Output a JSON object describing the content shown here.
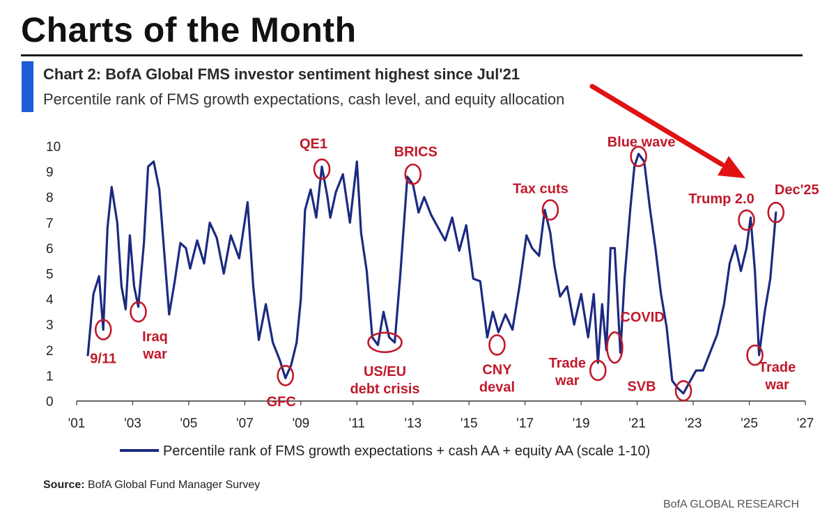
{
  "page": {
    "title": "Charts of the Month"
  },
  "colors": {
    "accent_bar": "#1f5bd6",
    "series_line": "#1b2a80",
    "annotation": "#c0182a",
    "arrow": "#e01212",
    "axis": "#333333"
  },
  "chart_data": {
    "type": "line",
    "title": "Chart 2: BofA Global FMS investor sentiment highest since Jul'21",
    "subtitle": "Percentile rank of FMS growth expectations, cash level, and equity allocation",
    "xlim": [
      2001,
      2027
    ],
    "ylim": [
      0,
      10
    ],
    "x_ticks": [
      {
        "value": 2001,
        "label": "'01"
      },
      {
        "value": 2003,
        "label": "'03"
      },
      {
        "value": 2005,
        "label": "'05"
      },
      {
        "value": 2007,
        "label": "'07"
      },
      {
        "value": 2009,
        "label": "'09"
      },
      {
        "value": 2011,
        "label": "'11"
      },
      {
        "value": 2013,
        "label": "'13"
      },
      {
        "value": 2015,
        "label": "'15"
      },
      {
        "value": 2017,
        "label": "'17"
      },
      {
        "value": 2019,
        "label": "'19"
      },
      {
        "value": 2021,
        "label": "'21"
      },
      {
        "value": 2023,
        "label": "'23"
      },
      {
        "value": 2025,
        "label": "'25"
      },
      {
        "value": 2027,
        "label": "'27"
      }
    ],
    "y_ticks": [
      0,
      1,
      2,
      3,
      4,
      5,
      6,
      7,
      8,
      9,
      10
    ],
    "series": [
      {
        "name": "Percentile rank of FMS growth expectations + cash AA + equity AA (scale 1-10)",
        "x": [
          2001.4,
          2001.6,
          2001.8,
          2001.95,
          2002.1,
          2002.25,
          2002.45,
          2002.6,
          2002.75,
          2002.9,
          2003.05,
          2003.2,
          2003.4,
          2003.55,
          2003.75,
          2003.95,
          2004.15,
          2004.3,
          2004.5,
          2004.7,
          2004.9,
          2005.05,
          2005.3,
          2005.55,
          2005.75,
          2006.0,
          2006.25,
          2006.5,
          2006.8,
          2007.1,
          2007.3,
          2007.5,
          2007.75,
          2008.0,
          2008.25,
          2008.45,
          2008.65,
          2008.85,
          2009.0,
          2009.15,
          2009.35,
          2009.55,
          2009.75,
          2009.95,
          2010.05,
          2010.25,
          2010.5,
          2010.75,
          2011.0,
          2011.15,
          2011.35,
          2011.55,
          2011.75,
          2011.95,
          2012.15,
          2012.35,
          2012.55,
          2012.8,
          2013.0,
          2013.2,
          2013.4,
          2013.65,
          2013.9,
          2014.15,
          2014.4,
          2014.65,
          2014.9,
          2015.15,
          2015.4,
          2015.65,
          2015.85,
          2016.05,
          2016.3,
          2016.55,
          2016.8,
          2017.05,
          2017.25,
          2017.5,
          2017.7,
          2017.9,
          2018.05,
          2018.25,
          2018.5,
          2018.75,
          2019.0,
          2019.25,
          2019.45,
          2019.6,
          2019.75,
          2019.9,
          2020.05,
          2020.2,
          2020.4,
          2020.55,
          2020.75,
          2020.9,
          2021.05,
          2021.25,
          2021.45,
          2021.65,
          2021.85,
          2022.05,
          2022.25,
          2022.45,
          2022.65,
          2022.85,
          2023.1,
          2023.35,
          2023.6,
          2023.85,
          2024.1,
          2024.3,
          2024.5,
          2024.7,
          2024.9,
          2025.05,
          2025.2,
          2025.35,
          2025.55,
          2025.75,
          2025.95
        ],
        "y": [
          1.8,
          4.2,
          4.9,
          2.8,
          6.8,
          8.4,
          7.0,
          4.5,
          3.6,
          6.5,
          4.5,
          3.7,
          6.2,
          9.2,
          9.4,
          8.3,
          5.5,
          3.4,
          4.7,
          6.2,
          6.0,
          5.2,
          6.3,
          5.4,
          7.0,
          6.4,
          5.0,
          6.5,
          5.6,
          7.8,
          4.5,
          2.4,
          3.8,
          2.3,
          1.6,
          0.9,
          1.4,
          2.3,
          4.0,
          7.5,
          8.3,
          7.2,
          9.2,
          8.0,
          7.2,
          8.2,
          8.9,
          7.0,
          9.4,
          6.6,
          5.1,
          2.5,
          2.2,
          3.5,
          2.5,
          2.3,
          5.0,
          8.8,
          8.5,
          7.4,
          8.0,
          7.3,
          6.8,
          6.3,
          7.2,
          5.9,
          6.9,
          4.8,
          4.7,
          2.5,
          3.5,
          2.7,
          3.4,
          2.8,
          4.5,
          6.5,
          6.0,
          5.7,
          7.5,
          6.6,
          5.3,
          4.1,
          4.5,
          3.0,
          4.2,
          2.5,
          4.2,
          1.5,
          3.8,
          2.0,
          6.0,
          6.0,
          1.9,
          4.8,
          7.5,
          9.2,
          9.7,
          9.4,
          7.6,
          6.0,
          4.2,
          2.9,
          0.8,
          0.5,
          0.3,
          0.7,
          1.2,
          1.2,
          1.9,
          2.6,
          3.8,
          5.4,
          6.1,
          5.1,
          6.0,
          7.2,
          5.1,
          1.8,
          3.5,
          4.8,
          7.4
        ]
      }
    ],
    "annotations": [
      {
        "label": "9/11",
        "x": 2001.95,
        "y": 2.8,
        "lines": [
          "9/11"
        ]
      },
      {
        "label": "Iraq war",
        "x": 2003.2,
        "y": 3.5,
        "lines": [
          "Iraq",
          "war"
        ]
      },
      {
        "label": "GFC",
        "x": 2008.45,
        "y": 1.0,
        "lines": [
          "GFC"
        ]
      },
      {
        "label": "QE1",
        "x": 2009.75,
        "y": 9.1,
        "lines": [
          "QE1"
        ]
      },
      {
        "label": "US/EU debt crisis",
        "x": 2012.0,
        "y": 2.3,
        "lines": [
          "US/EU",
          "debt crisis"
        ]
      },
      {
        "label": "BRICS",
        "x": 2013.0,
        "y": 8.9,
        "lines": [
          "BRICS"
        ]
      },
      {
        "label": "CNY deval",
        "x": 2016.0,
        "y": 2.2,
        "lines": [
          "CNY",
          "deval"
        ]
      },
      {
        "label": "Tax cuts",
        "x": 2017.9,
        "y": 7.5,
        "lines": [
          "Tax cuts"
        ]
      },
      {
        "label": "Trade war",
        "x": 2019.6,
        "y": 1.2,
        "lines": [
          "Trade",
          "war"
        ]
      },
      {
        "label": "COVID",
        "x": 2020.2,
        "y": 2.1,
        "lines": [
          "COVID"
        ]
      },
      {
        "label": "Blue wave",
        "x": 2021.05,
        "y": 9.6,
        "lines": [
          "Blue wave"
        ]
      },
      {
        "label": "SVB",
        "x": 2022.65,
        "y": 0.4,
        "lines": [
          "SVB"
        ]
      },
      {
        "label": "Trump 2.0",
        "x": 2024.9,
        "y": 7.1,
        "lines": [
          "Trump 2.0"
        ]
      },
      {
        "label": "Trade war",
        "x": 2025.2,
        "y": 1.8,
        "lines": [
          "Trade",
          "war"
        ]
      },
      {
        "label": "Dec'25",
        "x": 2025.95,
        "y": 7.4,
        "lines": [
          "Dec'25"
        ]
      }
    ]
  },
  "legend": {
    "label": "Percentile rank of FMS growth expectations + cash AA + equity AA (scale 1-10)"
  },
  "source": {
    "prefix": "Source:",
    "text": " BofA Global Fund Manager Survey"
  },
  "footer": {
    "brand": "BofA GLOBAL RESEARCH"
  }
}
